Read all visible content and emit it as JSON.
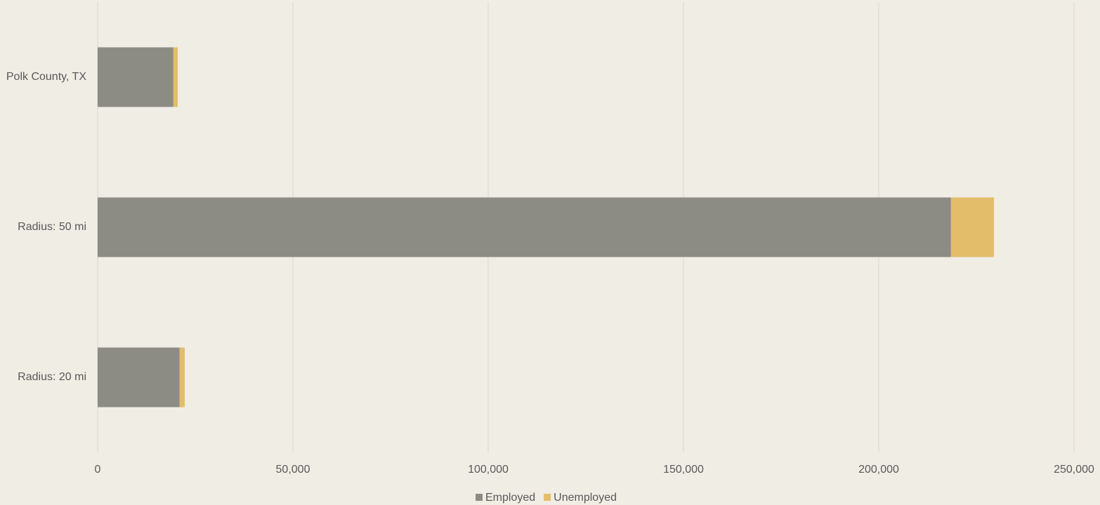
{
  "chart_data": {
    "type": "stacked-bar-horizontal",
    "categories": [
      "Polk County, TX",
      "Radius: 50 mi",
      "Radius: 20 mi"
    ],
    "series": [
      {
        "name": "Employed",
        "color": "#8c8c84",
        "values": [
          19400,
          218500,
          21000
        ]
      },
      {
        "name": "Unemployed",
        "color": "#e3bd6a",
        "values": [
          1100,
          11000,
          1300
        ]
      }
    ],
    "xlim": [
      0,
      250000
    ],
    "xticks": [
      0,
      {
        "value": 50000,
        "label": "50,000"
      },
      {
        "value": 100000,
        "label": "100,000"
      },
      {
        "value": 150000,
        "label": "150,000"
      },
      {
        "value": 200000,
        "label": "200,000"
      },
      {
        "value": 250000,
        "label": "250,000"
      }
    ],
    "grid": true,
    "legend": "bottom"
  }
}
